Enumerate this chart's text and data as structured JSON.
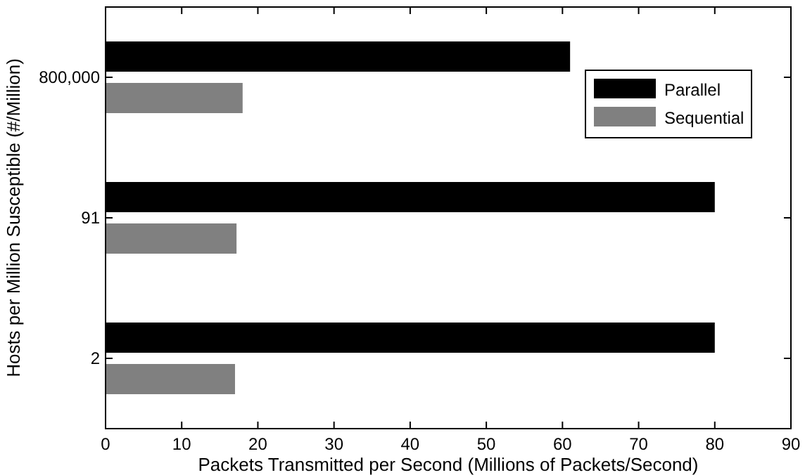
{
  "chart_data": {
    "type": "bar",
    "orientation": "horizontal",
    "xlabel": "Packets Transmitted per Second (Millions of Packets/Second)",
    "ylabel": "Hosts per Million Susceptible (#/Million)",
    "categories": [
      "800,000",
      "91",
      "2"
    ],
    "series": [
      {
        "name": "Parallel",
        "color": "#000000",
        "values": [
          61,
          80,
          80
        ]
      },
      {
        "name": "Sequential",
        "color": "#808080",
        "values": [
          18,
          17.2,
          17
        ]
      }
    ],
    "xlim": [
      0,
      90
    ],
    "xticks": [
      0,
      10,
      20,
      30,
      40,
      50,
      60,
      70,
      80,
      90
    ],
    "grid": false,
    "legend": "top right"
  }
}
